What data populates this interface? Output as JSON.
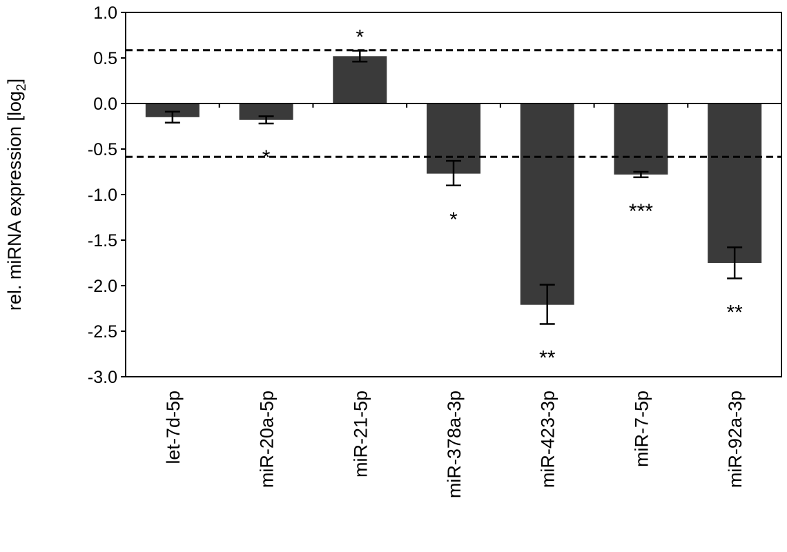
{
  "chart_data": {
    "type": "bar",
    "ylabel": "rel. miRNA expression [log",
    "ylabel_subscript": "2",
    "ylabel_suffix": "]",
    "ylim": [
      -3.0,
      1.0
    ],
    "yticks": [
      "1.0",
      "0.5",
      "0.0",
      "-0.5",
      "-1.0",
      "-1.5",
      "-2.0",
      "-2.5",
      "-3.0"
    ],
    "ytick_values": [
      1.0,
      0.5,
      0.0,
      -0.5,
      -1.0,
      -1.5,
      -2.0,
      -2.5,
      -3.0
    ],
    "categories": [
      "let-7d-5p",
      "miR-20a-5p",
      "miR-21-5p",
      "miR-378a-3p",
      "miR-423-3p",
      "miR-7-5p",
      "miR-92a-3p"
    ],
    "values": [
      -0.15,
      -0.18,
      0.52,
      -0.77,
      -2.21,
      -0.78,
      -1.75
    ],
    "error_low": [
      -0.21,
      -0.22,
      0.46,
      -0.9,
      -2.42,
      -0.81,
      -1.92
    ],
    "error_high": [
      -0.09,
      -0.14,
      0.58,
      -0.63,
      -1.99,
      -0.75,
      -1.58
    ],
    "significance": [
      "",
      "*",
      "*",
      "*",
      "**",
      "***",
      "**"
    ],
    "reference_lines": [
      0.585,
      -0.585
    ],
    "bar_color": "#3a3a3a",
    "grid": false,
    "legend": "none"
  }
}
